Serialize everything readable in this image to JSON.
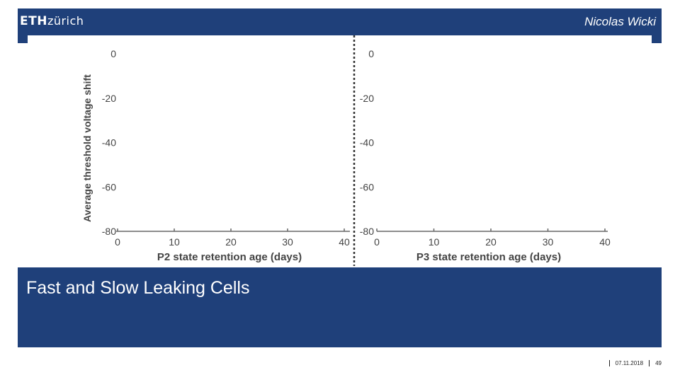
{
  "header": {
    "logo_bold": "ETH",
    "logo_light": "zürich",
    "author": "Nicolas Wicki"
  },
  "slide": {
    "title": "Fast and Slow Leaking Cells"
  },
  "footer": {
    "date": "07.11.2018",
    "page": "49"
  },
  "chart_data": [
    {
      "type": "line",
      "xlabel": "P2 state retention age (days)",
      "ylabel": "Average threshold voltage shift",
      "x_ticks": [
        0,
        10,
        20,
        30,
        40
      ],
      "y_ticks": [
        0,
        -20,
        -40,
        -60,
        -80
      ],
      "xlim": [
        0,
        40
      ],
      "ylim": [
        -80,
        0
      ],
      "series": []
    },
    {
      "type": "line",
      "xlabel": "P3 state retention age (days)",
      "ylabel": "",
      "x_ticks": [
        0,
        10,
        20,
        30,
        40
      ],
      "y_ticks": [
        0,
        -20,
        -40,
        -60,
        -80
      ],
      "xlim": [
        0,
        40
      ],
      "ylim": [
        -80,
        0
      ],
      "series": []
    }
  ]
}
